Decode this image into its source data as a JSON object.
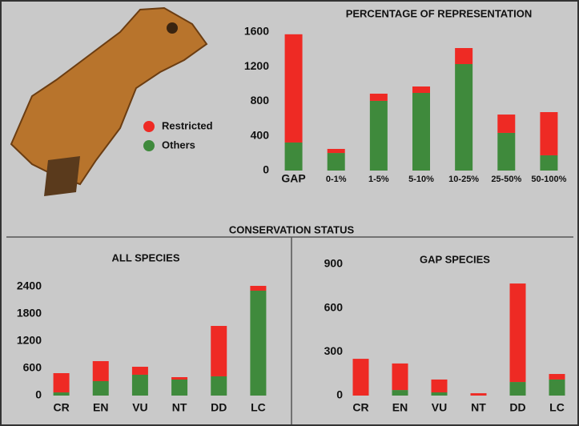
{
  "section_title": "CONSERVATION STATUS",
  "chart_data": [
    {
      "type": "bar",
      "title": "PERCENTAGE OF REPRESENTATION",
      "categories": [
        "GAP",
        "0-1%",
        "1-5%",
        "5-10%",
        "10-25%",
        "25-50%",
        "50-100%"
      ],
      "series": [
        {
          "name": "Restricted",
          "color": "#ee2a24",
          "values": [
            1250,
            47,
            83,
            74,
            185,
            212,
            499
          ]
        },
        {
          "name": "Others",
          "color": "#3f8a3c",
          "values": [
            324,
            203,
            805,
            897,
            1230,
            435,
            176
          ]
        }
      ],
      "ylim": [
        0,
        1600
      ],
      "yticks": [
        0,
        400,
        800,
        1200,
        1600
      ],
      "stacked": true,
      "legend": true
    },
    {
      "type": "bar",
      "title": "ALL SPECIES",
      "categories": [
        "CR",
        "EN",
        "VU",
        "NT",
        "DD",
        "LC"
      ],
      "series": [
        {
          "color": "#ee2a24",
          "values": [
            424,
            441,
            176,
            53,
            1111,
            106
          ]
        },
        {
          "color": "#3f8a3c",
          "values": [
            70,
            318,
            459,
            353,
            424,
            2312
          ]
        }
      ],
      "ylim": [
        0,
        2400
      ],
      "yticks": [
        0,
        600,
        1200,
        1800,
        2400
      ],
      "stacked": true
    },
    {
      "type": "bar",
      "title": "GAP SPECIES",
      "categories": [
        "CR",
        "EN",
        "VU",
        "NT",
        "DD",
        "LC"
      ],
      "series": [
        {
          "color": "#ee2a24",
          "values": [
            252,
            182,
            88,
            16,
            675,
            38
          ]
        },
        {
          "color": "#3f8a3c",
          "values": [
            0,
            38,
            22,
            0,
            93,
            110
          ]
        }
      ],
      "ylim": [
        0,
        900
      ],
      "yticks": [
        0,
        300,
        600,
        900
      ],
      "stacked": true
    }
  ]
}
